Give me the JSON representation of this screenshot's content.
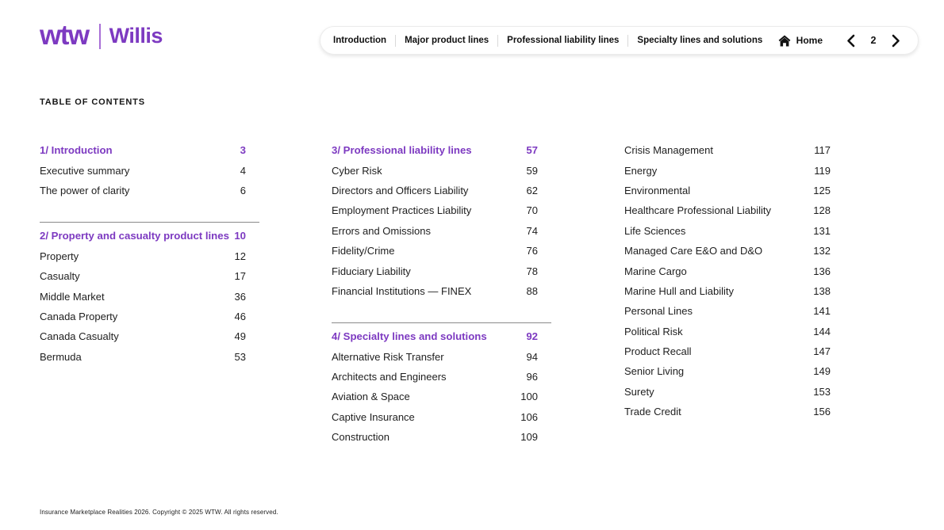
{
  "colors": {
    "accent": "#7d3ac1",
    "text": "#1e1e1e",
    "divider": "#8a8a8a"
  },
  "logo": {
    "brand": "wtw",
    "name": "Willis"
  },
  "nav": {
    "tabs": [
      "Introduction",
      "Major product lines",
      "Professional liability lines",
      "Specialty lines and solutions"
    ],
    "home_label": "Home",
    "page_number": "2"
  },
  "toc": {
    "heading": "TABLE OF CONTENTS",
    "columns": [
      {
        "blocks": [
          {
            "divider": false,
            "heading": {
              "label": "1/ Introduction",
              "page": "3"
            },
            "items": [
              {
                "label": "Executive summary",
                "page": "4"
              },
              {
                "label": "The power of clarity",
                "page": "6"
              }
            ]
          },
          {
            "divider": true,
            "heading": {
              "label": "2/ Property and casualty product lines",
              "page": "10"
            },
            "items": [
              {
                "label": "Property",
                "page": "12"
              },
              {
                "label": "Casualty",
                "page": "17"
              },
              {
                "label": "Middle Market",
                "page": "36"
              },
              {
                "label": "Canada Property",
                "page": "46"
              },
              {
                "label": "Canada Casualty",
                "page": "49"
              },
              {
                "label": "Bermuda",
                "page": "53"
              }
            ]
          }
        ]
      },
      {
        "blocks": [
          {
            "divider": false,
            "heading": {
              "label": "3/ Professional liability lines",
              "page": "57"
            },
            "items": [
              {
                "label": "Cyber Risk",
                "page": "59"
              },
              {
                "label": "Directors and Officers Liability",
                "page": "62"
              },
              {
                "label": "Employment Practices Liability",
                "page": "70"
              },
              {
                "label": "Errors and Omissions",
                "page": "74"
              },
              {
                "label": "Fidelity/Crime",
                "page": "76"
              },
              {
                "label": "Fiduciary Liability",
                "page": "78"
              },
              {
                "label": "Financial Institutions — FINEX",
                "page": "88"
              }
            ]
          },
          {
            "divider": true,
            "heading": {
              "label": "4/ Specialty lines and solutions",
              "page": "92"
            },
            "items": [
              {
                "label": "Alternative Risk Transfer",
                "page": "94"
              },
              {
                "label": "Architects and Engineers",
                "page": "96"
              },
              {
                "label": "Aviation & Space",
                "page": "100"
              },
              {
                "label": "Captive Insurance",
                "page": "106"
              },
              {
                "label": "Construction",
                "page": "109"
              }
            ]
          }
        ]
      },
      {
        "blocks": [
          {
            "divider": false,
            "heading": null,
            "items": [
              {
                "label": "Crisis Management",
                "page": "117"
              },
              {
                "label": "Energy",
                "page": "119"
              },
              {
                "label": "Environmental",
                "page": "125"
              },
              {
                "label": "Healthcare Professional Liability",
                "page": "128"
              },
              {
                "label": "Life Sciences",
                "page": "131"
              },
              {
                "label": "Managed Care E&O and D&O",
                "page": "132"
              },
              {
                "label": "Marine Cargo",
                "page": "136"
              },
              {
                "label": "Marine Hull and Liability",
                "page": "138"
              },
              {
                "label": "Personal Lines",
                "page": "141"
              },
              {
                "label": "Political Risk",
                "page": "144"
              },
              {
                "label": "Product Recall",
                "page": "147"
              },
              {
                "label": "Senior Living",
                "page": "149"
              },
              {
                "label": "Surety",
                "page": "153"
              },
              {
                "label": "Trade Credit",
                "page": "156"
              }
            ]
          }
        ]
      }
    ]
  },
  "footer": {
    "text": "Insurance Marketplace Realities 2026. Copyright © 2025 WTW. All rights reserved."
  }
}
